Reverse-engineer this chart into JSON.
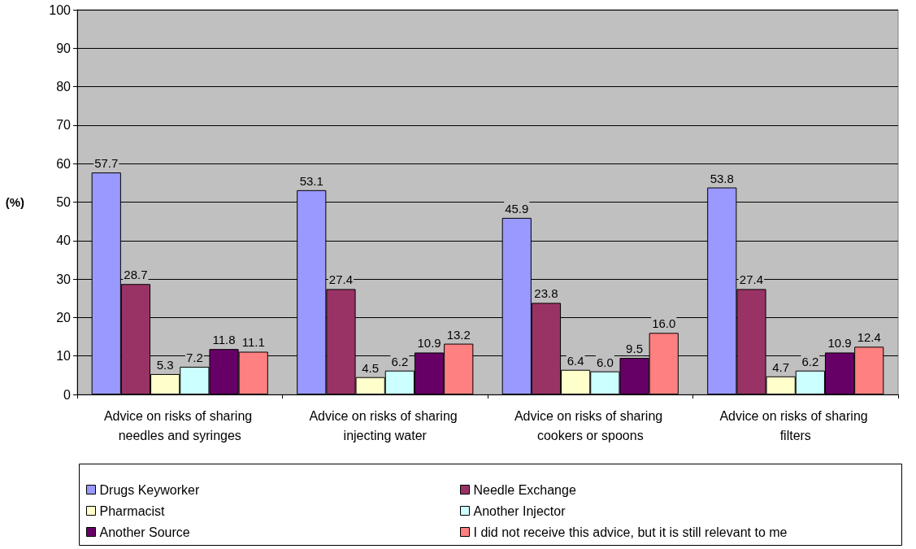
{
  "chart_data": {
    "type": "bar",
    "ylabel": "(%)",
    "categories": [
      "Advice on risks of sharing needles and syringes",
      "Advice on risks of sharing injecting water",
      "Advice on risks of sharing cookers or spoons",
      "Advice on risks of sharing filters"
    ],
    "series": [
      {
        "name": "Drugs Keyworker",
        "color": "#9999ff",
        "values": [
          57.7,
          53.1,
          45.9,
          53.8
        ],
        "value_labels": [
          "57.7",
          "53.1",
          "45.9",
          "53.8"
        ]
      },
      {
        "name": "Needle Exchange",
        "color": "#993366",
        "values": [
          28.7,
          27.4,
          23.8,
          27.4
        ],
        "value_labels": [
          "28.7",
          "27.4",
          "23.8",
          "27.4"
        ]
      },
      {
        "name": "Pharmacist",
        "color": "#ffffcc",
        "values": [
          5.3,
          4.5,
          6.4,
          4.7
        ],
        "value_labels": [
          "5.3",
          "4.5",
          "6.4",
          "4.7"
        ]
      },
      {
        "name": "Another Injector",
        "color": "#ccffff",
        "values": [
          7.2,
          6.2,
          6.0,
          6.2
        ],
        "value_labels": [
          "7.2",
          "6.2",
          "6.0",
          "6.2"
        ]
      },
      {
        "name": "Another Source",
        "color": "#660066",
        "values": [
          11.8,
          10.9,
          9.5,
          10.9
        ],
        "value_labels": [
          "11.8",
          "10.9",
          "9.5",
          "10.9"
        ]
      },
      {
        "name": "I did not receive this advice, but it is still relevant to me",
        "color": "#ff8080",
        "values": [
          11.1,
          13.2,
          16.0,
          12.4
        ],
        "value_labels": [
          "11.1",
          "13.2",
          "16.0",
          "12.4"
        ]
      }
    ],
    "ylim": [
      0,
      100
    ],
    "yticks": [
      0,
      10,
      20,
      30,
      40,
      50,
      60,
      70,
      80,
      90,
      100
    ],
    "grid": "y",
    "legend": "bottom"
  }
}
